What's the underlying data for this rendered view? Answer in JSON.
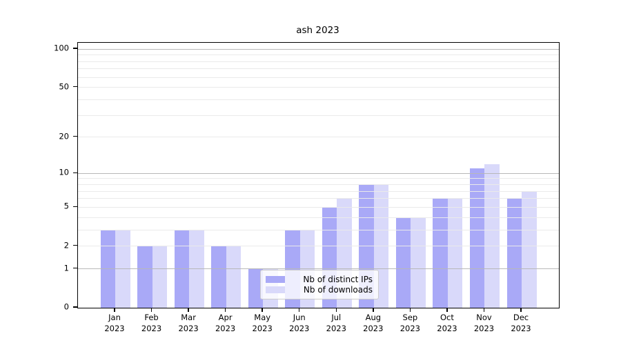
{
  "chart_data": {
    "type": "bar",
    "title": "ash 2023",
    "categories": [
      "Jan",
      "Feb",
      "Mar",
      "Apr",
      "May",
      "Jun",
      "Jul",
      "Aug",
      "Sep",
      "Oct",
      "Nov",
      "Dec"
    ],
    "year_line": "2023",
    "series": [
      {
        "name": "Nb of distinct IPs",
        "color": "#a9a9f7",
        "values": [
          3,
          2,
          3,
          2,
          1,
          3,
          5,
          8,
          4,
          6,
          11,
          6
        ]
      },
      {
        "name": "Nb of downloads",
        "color": "#d9d9fa",
        "values": [
          3,
          2,
          3,
          2,
          1,
          3,
          6,
          8,
          4,
          6,
          12,
          7
        ]
      }
    ],
    "yscale": "log1p",
    "ylim": [
      0,
      112
    ],
    "yticks_labeled": [
      0,
      1,
      2,
      5,
      10,
      20,
      50,
      100
    ],
    "grid_major": [
      1,
      10,
      100
    ],
    "grid_minor": [
      2,
      3,
      4,
      5,
      6,
      7,
      8,
      9,
      20,
      30,
      40,
      50,
      60,
      70,
      80,
      90
    ],
    "grid_color_major": "#b8b8b8",
    "grid_color_minor": "#eaeaea",
    "legend_position": "inside-bottom-center",
    "grid_above_bars": true
  }
}
